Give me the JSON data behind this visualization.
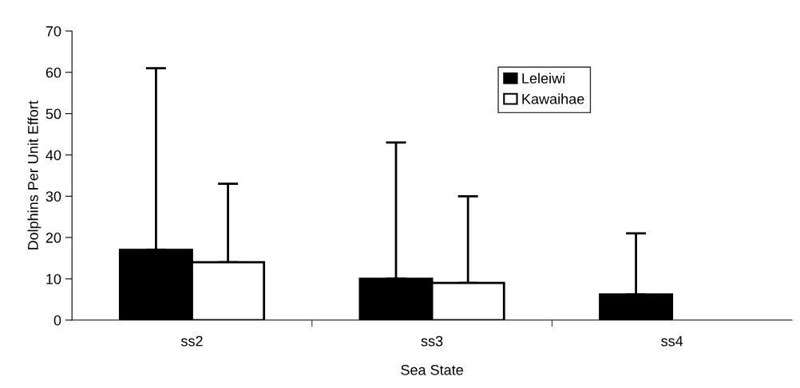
{
  "chart_data": {
    "type": "bar",
    "xlabel": "Sea State",
    "ylabel": "Dolphins Per Unit Effort",
    "categories": [
      "ss2",
      "ss3",
      "ss4"
    ],
    "series": [
      {
        "name": "Leleiwi",
        "color": "#000000",
        "values": [
          17,
          10,
          6.2
        ],
        "errors": [
          [
            17,
            61
          ],
          [
            10,
            43
          ],
          [
            6.2,
            21
          ]
        ]
      },
      {
        "name": "Kawaihae",
        "color": "#ffffff",
        "values": [
          14,
          9,
          0
        ],
        "errors": [
          [
            14,
            33
          ],
          [
            9,
            30
          ],
          null
        ]
      }
    ],
    "ylim": [
      0,
      70
    ],
    "yticks": [
      0,
      10,
      20,
      30,
      40,
      50,
      60,
      70
    ],
    "grid": false,
    "legend": "top right"
  }
}
